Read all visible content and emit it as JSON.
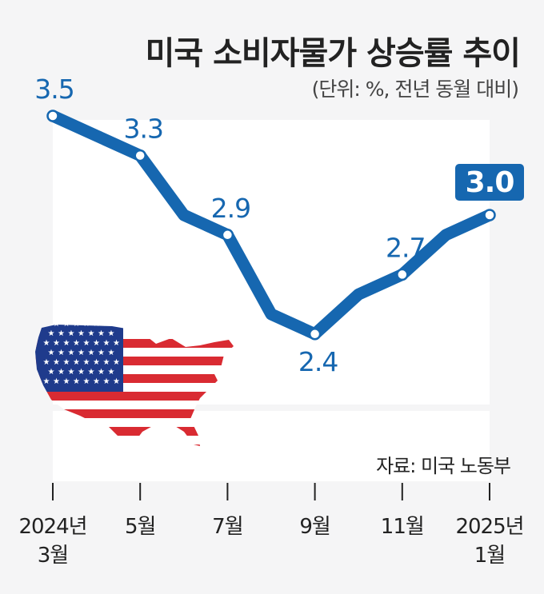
{
  "header": {
    "title": "미국 소비자물가 상승률 추이",
    "subtitle": "(단위: %, 전년 동월 대비)"
  },
  "source": "자료: 미국 노동부",
  "chart_data": {
    "type": "line",
    "title": "미국 소비자물가 상승률 추이",
    "subtitle": "(단위: %, 전년 동월 대비)",
    "x": [
      "2024-03",
      "2024-04",
      "2024-05",
      "2024-06",
      "2024-07",
      "2024-08",
      "2024-09",
      "2024-10",
      "2024-11",
      "2024-12",
      "2025-01"
    ],
    "values": [
      3.5,
      3.4,
      3.3,
      3.0,
      2.9,
      2.5,
      2.4,
      2.6,
      2.7,
      2.9,
      3.0
    ],
    "point_labels": [
      {
        "x": "2024-03",
        "text": "3.5"
      },
      {
        "x": "2024-05",
        "text": "3.3"
      },
      {
        "x": "2024-07",
        "text": "2.9"
      },
      {
        "x": "2024-09",
        "text": "2.4"
      },
      {
        "x": "2024-11",
        "text": "2.7"
      },
      {
        "x": "2025-01",
        "text": "3.0",
        "highlight": true
      }
    ],
    "x_ticks": [
      {
        "x": "2024-03",
        "line1": "2024년",
        "line2": "3월"
      },
      {
        "x": "2024-05",
        "line1": "5월",
        "line2": ""
      },
      {
        "x": "2024-07",
        "line1": "7월",
        "line2": ""
      },
      {
        "x": "2024-09",
        "line1": "9월",
        "line2": ""
      },
      {
        "x": "2024-11",
        "line1": "11월",
        "line2": ""
      },
      {
        "x": "2025-01",
        "line1": "2025년",
        "line2": "1월"
      }
    ],
    "series_color": "#1667b0",
    "grid": false,
    "legend": "none"
  }
}
